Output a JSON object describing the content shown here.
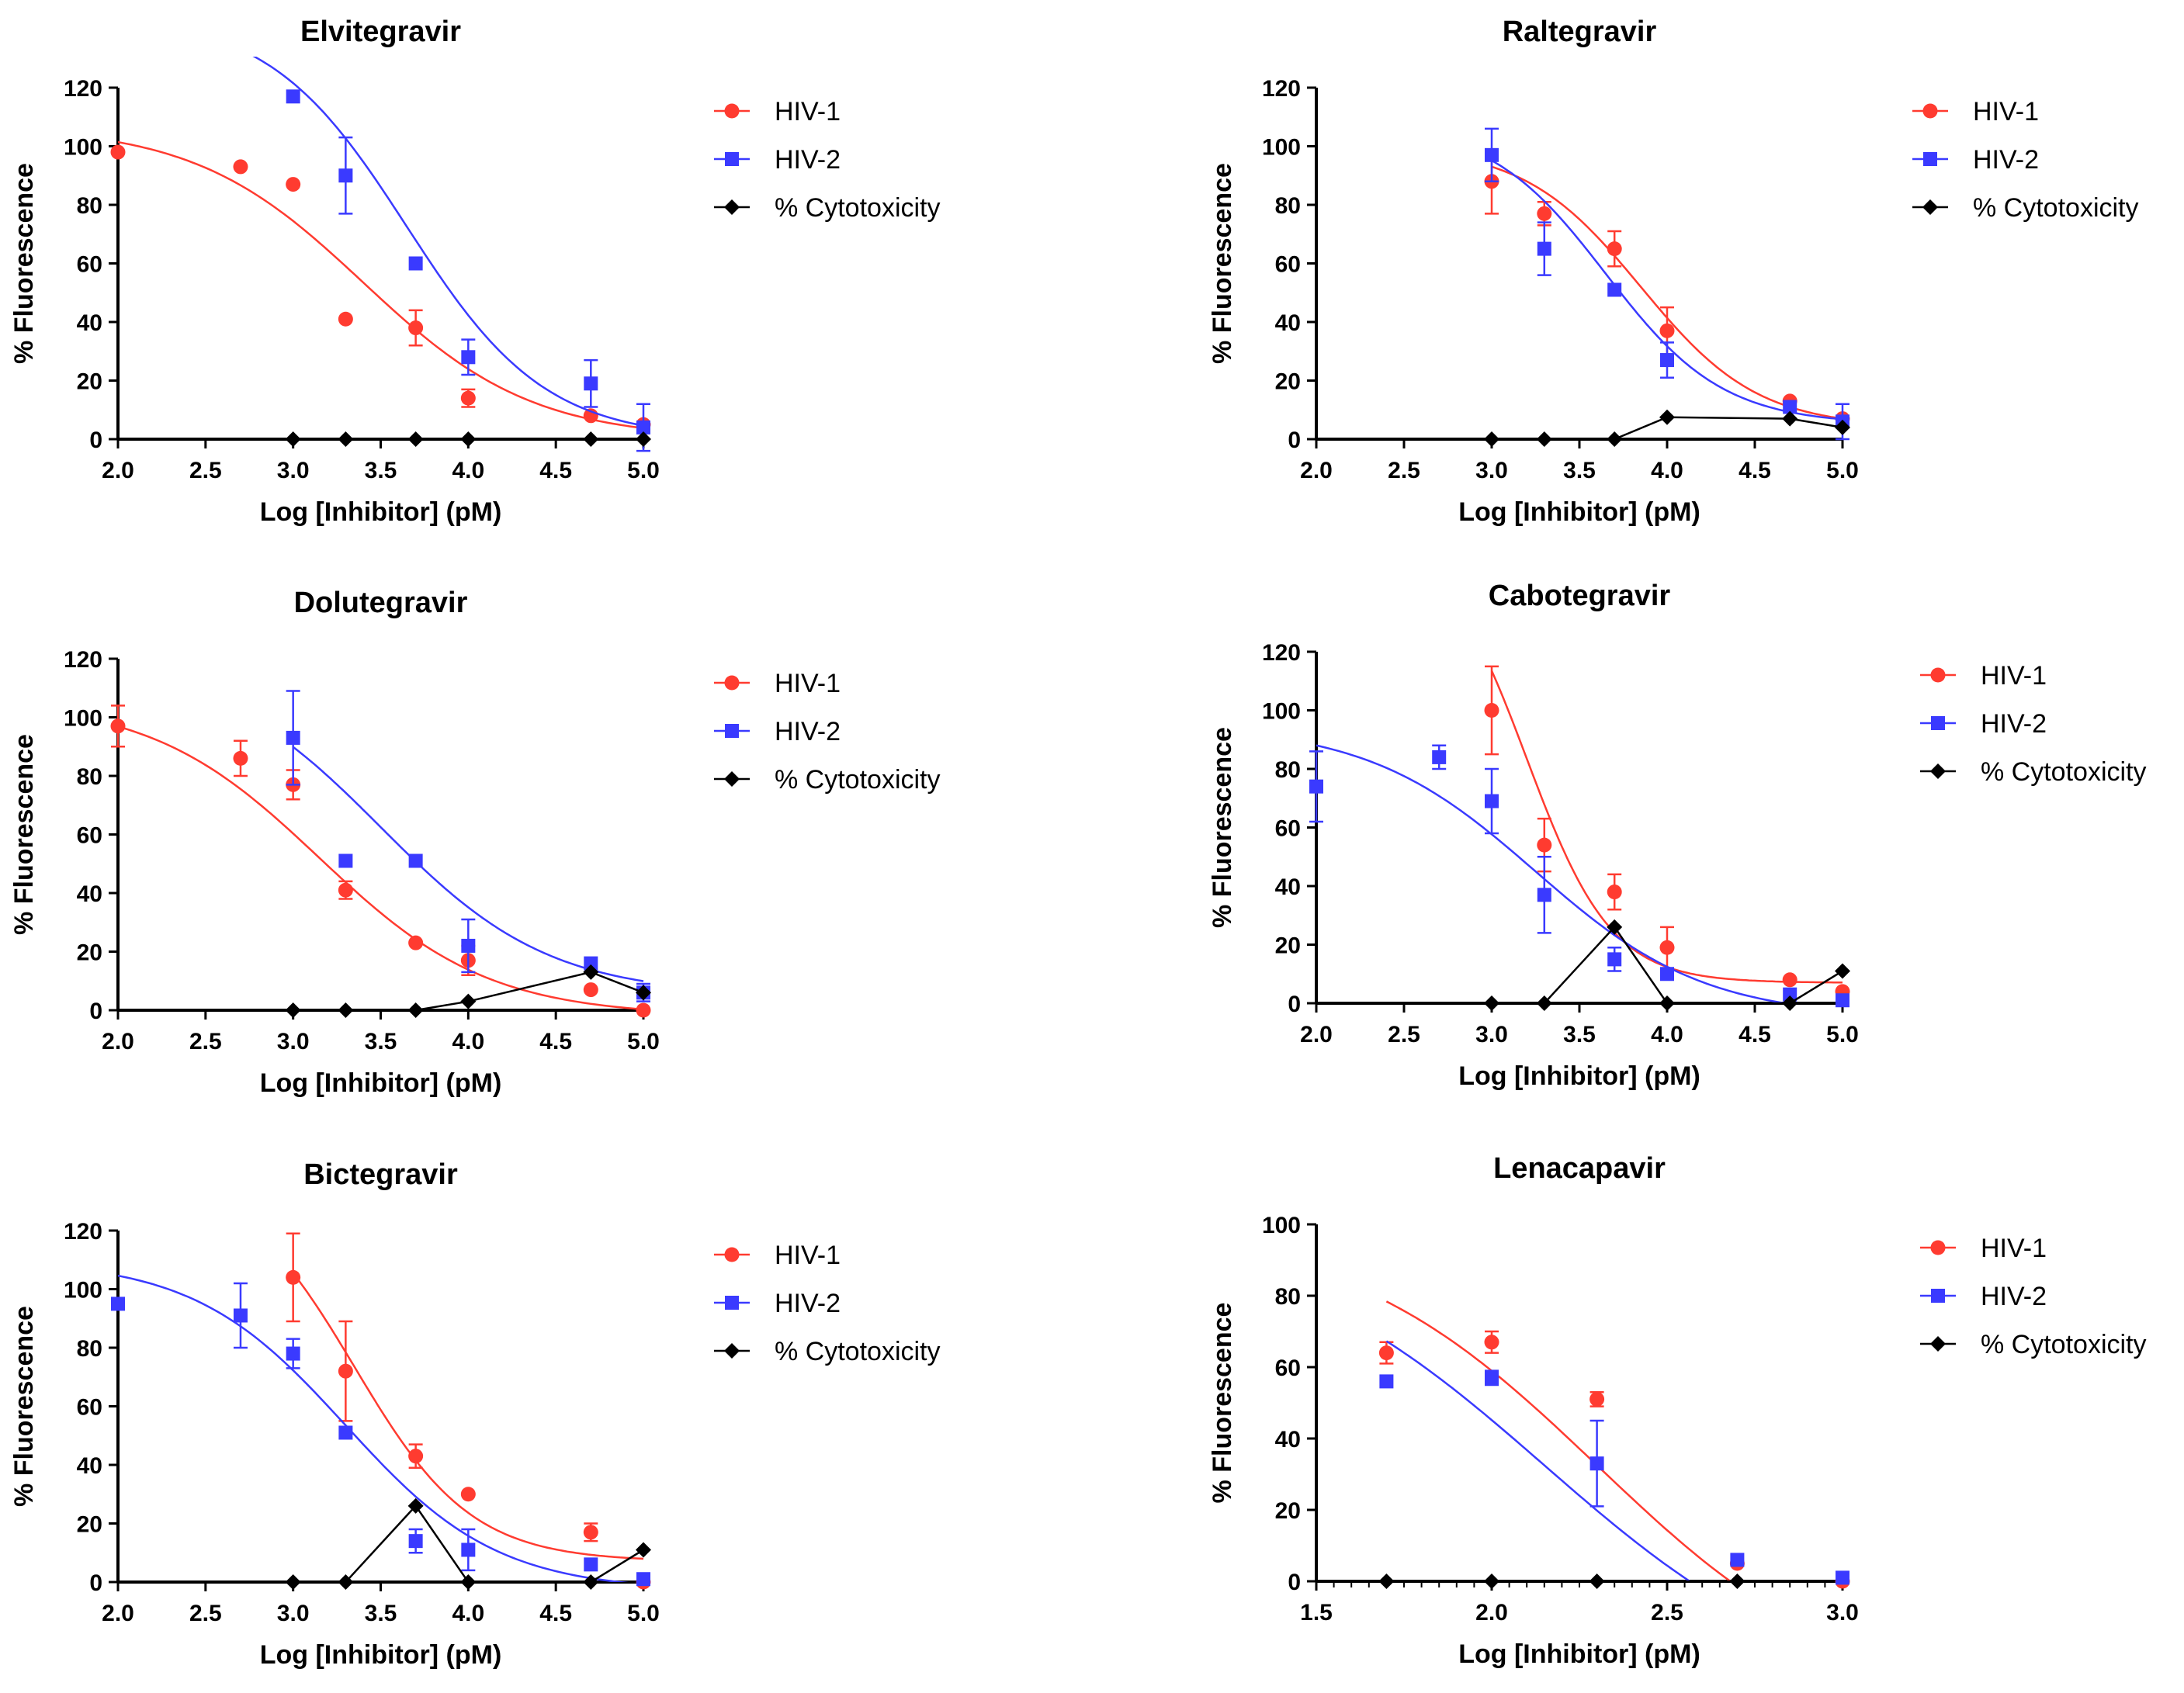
{
  "chart_data": [
    {
      "type": "scatter",
      "title": "Elvitegravir",
      "xlabel": "Log [Inhibitor] (pM)",
      "ylabel": "% Fluorescence",
      "xlim": [
        2.0,
        5.0
      ],
      "ylim": [
        0,
        120
      ],
      "xticks": [
        "2.0",
        "2.5",
        "3.0",
        "3.5",
        "4.0",
        "4.5",
        "5.0"
      ],
      "yticks": [
        "0",
        "20",
        "40",
        "60",
        "80",
        "100",
        "120"
      ],
      "minor_ticks": false,
      "legend": [
        "HIV-1",
        "HIV-2",
        "% Cytotoxicity"
      ],
      "series": [
        {
          "name": "HIV-1",
          "color": "#ff3b30",
          "marker": "circle",
          "x": [
            2.0,
            2.7,
            3.0,
            3.3,
            3.7,
            4.0,
            4.7,
            5.0
          ],
          "y": [
            98,
            93,
            87,
            41,
            38,
            14,
            8,
            5
          ],
          "err": [
            0,
            0,
            0,
            0,
            6,
            3,
            0,
            0
          ],
          "fit": {
            "top": 107,
            "bottom": 0,
            "ic50": 3.4,
            "hill": -0.9
          }
        },
        {
          "name": "HIV-2",
          "color": "#3a3aff",
          "marker": "square",
          "x": [
            3.0,
            3.3,
            3.7,
            4.0,
            4.7,
            5.0
          ],
          "y": [
            117,
            90,
            60,
            28,
            19,
            4
          ],
          "err": [
            0,
            13,
            0,
            6,
            8,
            8
          ],
          "fit": {
            "top": 145,
            "bottom": 0,
            "ic50": 3.65,
            "hill": -1.1
          }
        },
        {
          "name": "% Cytotoxicity",
          "color": "#000000",
          "marker": "diamond",
          "x": [
            3.0,
            3.3,
            3.7,
            4.0,
            4.7,
            5.0
          ],
          "y": [
            0,
            0,
            0,
            0,
            0,
            0
          ]
        }
      ]
    },
    {
      "type": "scatter",
      "title": "Raltegravir",
      "xlabel": "Log [Inhibitor] (pM)",
      "ylabel": "% Fluorescence",
      "xlim": [
        2.0,
        5.0
      ],
      "ylim": [
        0,
        120
      ],
      "xticks": [
        "2.0",
        "2.5",
        "3.0",
        "3.5",
        "4.0",
        "4.5",
        "5.0"
      ],
      "yticks": [
        "0",
        "20",
        "40",
        "60",
        "80",
        "100",
        "120"
      ],
      "minor_ticks": false,
      "legend": [
        "HIV-1",
        "HIV-2",
        "% Cytotoxicity"
      ],
      "series": [
        {
          "name": "HIV-1",
          "color": "#ff3b30",
          "marker": "circle",
          "x": [
            3.0,
            3.3,
            3.7,
            4.0,
            4.7,
            5.0
          ],
          "y": [
            88,
            77,
            65,
            37,
            13,
            7
          ],
          "err": [
            11,
            4,
            6,
            8,
            0,
            0
          ],
          "fit": {
            "top": 100,
            "bottom": 4,
            "ic50": 3.85,
            "hill": -1.3
          },
          "fit_x": [
            3.0,
            5.0
          ]
        },
        {
          "name": "HIV-2",
          "color": "#3a3aff",
          "marker": "square",
          "x": [
            3.0,
            3.3,
            3.7,
            4.0,
            4.7,
            5.0
          ],
          "y": [
            97,
            65,
            51,
            27,
            11,
            6
          ],
          "err": [
            9,
            9,
            0,
            6,
            0,
            6
          ],
          "fit": {
            "top": 108,
            "bottom": 5,
            "ic50": 3.65,
            "hill": -1.3
          },
          "fit_x": [
            3.0,
            5.0
          ]
        },
        {
          "name": "% Cytotoxicity",
          "color": "#000000",
          "marker": "diamond",
          "x": [
            3.0,
            3.3,
            3.7,
            4.0,
            4.7,
            5.0
          ],
          "y": [
            0,
            0,
            0,
            7.5,
            7,
            4
          ]
        }
      ]
    },
    {
      "type": "scatter",
      "title": "Dolutegravir",
      "xlabel": "Log [Inhibitor] (pM)",
      "ylabel": "% Fluorescence",
      "xlim": [
        2.0,
        5.0
      ],
      "ylim": [
        0,
        120
      ],
      "xticks": [
        "2.0",
        "2.5",
        "3.0",
        "3.5",
        "4.0",
        "4.5",
        "5.0"
      ],
      "yticks": [
        "0",
        "20",
        "40",
        "60",
        "80",
        "100",
        "120"
      ],
      "minor_ticks": false,
      "legend": [
        "HIV-1",
        "HIV-2",
        "% Cytotoxicity"
      ],
      "series": [
        {
          "name": "HIV-1",
          "color": "#ff3b30",
          "marker": "circle",
          "x": [
            2.0,
            2.7,
            3.0,
            3.3,
            3.7,
            4.0,
            4.7,
            5.0
          ],
          "y": [
            97,
            86,
            77,
            41,
            23,
            17,
            7,
            0
          ],
          "err": [
            7,
            6,
            5,
            3,
            0,
            5,
            0,
            0
          ],
          "fit": {
            "top": 106,
            "bottom": -2,
            "ic50": 3.15,
            "hill": -0.9
          }
        },
        {
          "name": "HIV-2",
          "color": "#3a3aff",
          "marker": "square",
          "x": [
            3.0,
            3.3,
            3.7,
            4.0,
            4.7,
            5.0
          ],
          "y": [
            93,
            51,
            51,
            22,
            16,
            6
          ],
          "err": [
            16,
            0,
            0,
            9,
            0,
            3
          ],
          "fit": {
            "top": 120,
            "bottom": 5,
            "ic50": 3.5,
            "hill": -0.9
          },
          "fit_x": [
            3.0,
            5.0
          ]
        },
        {
          "name": "% Cytotoxicity",
          "color": "#000000",
          "marker": "diamond",
          "x": [
            3.0,
            3.3,
            3.7,
            4.0,
            4.7,
            5.0
          ],
          "y": [
            0,
            0,
            0,
            3,
            13,
            6
          ]
        }
      ]
    },
    {
      "type": "scatter",
      "title": "Cabotegravir",
      "xlabel": "Log [Inhibitor] (pM)",
      "ylabel": "% Fluorescence",
      "xlim": [
        2.0,
        5.0
      ],
      "ylim": [
        0,
        120
      ],
      "xticks": [
        "2.0",
        "2.5",
        "3.0",
        "3.5",
        "4.0",
        "4.5",
        "5.0"
      ],
      "yticks": [
        "0",
        "20",
        "40",
        "60",
        "80",
        "100",
        "120"
      ],
      "minor_ticks": false,
      "legend": [
        "HIV-1",
        "HIV-2",
        "% Cytotoxicity"
      ],
      "series": [
        {
          "name": "HIV-1",
          "color": "#ff3b30",
          "marker": "circle",
          "x": [
            3.0,
            3.3,
            3.7,
            4.0,
            4.7,
            5.0
          ],
          "y": [
            100,
            54,
            38,
            19,
            8,
            4
          ],
          "err": [
            15,
            9,
            6,
            7,
            0,
            0
          ],
          "fit": {
            "top": 160,
            "bottom": 7,
            "ic50": 3.2,
            "hill": -1.8
          },
          "fit_x": [
            3.0,
            5.0
          ]
        },
        {
          "name": "HIV-2",
          "color": "#3a3aff",
          "marker": "square",
          "x": [
            2.0,
            2.7,
            3.0,
            3.3,
            3.7,
            4.0,
            4.7,
            5.0
          ],
          "y": [
            74,
            84,
            69,
            37,
            15,
            10,
            3,
            1
          ],
          "err": [
            12,
            4,
            11,
            13,
            4,
            0,
            0,
            0
          ],
          "fit": {
            "top": 95,
            "bottom": -5,
            "ic50": 3.25,
            "hill": -0.9
          }
        },
        {
          "name": "% Cytotoxicity",
          "color": "#000000",
          "marker": "diamond",
          "x": [
            3.0,
            3.3,
            3.7,
            4.0,
            4.7,
            5.0
          ],
          "y": [
            0,
            0,
            26,
            0,
            0,
            11
          ]
        }
      ]
    },
    {
      "type": "scatter",
      "title": "Bictegravir",
      "xlabel": "Log [Inhibitor] (pM)",
      "ylabel": "% Fluorescence",
      "xlim": [
        2.0,
        5.0
      ],
      "ylim": [
        0,
        120
      ],
      "xticks": [
        "2.0",
        "2.5",
        "3.0",
        "3.5",
        "4.0",
        "4.5",
        "5.0"
      ],
      "yticks": [
        "0",
        "20",
        "40",
        "60",
        "80",
        "100",
        "120"
      ],
      "minor_ticks": false,
      "legend": [
        "HIV-1",
        "HIV-2",
        "% Cytotoxicity"
      ],
      "series": [
        {
          "name": "HIV-1",
          "color": "#ff3b30",
          "marker": "circle",
          "x": [
            3.0,
            3.3,
            3.7,
            4.0,
            4.7,
            5.0
          ],
          "y": [
            104,
            72,
            43,
            30,
            17,
            0
          ],
          "err": [
            15,
            17,
            4,
            0,
            3,
            0
          ],
          "fit": {
            "top": 140,
            "bottom": 7,
            "ic50": 3.35,
            "hill": -1.3
          },
          "fit_x": [
            3.0,
            5.0
          ]
        },
        {
          "name": "HIV-2",
          "color": "#3a3aff",
          "marker": "square",
          "x": [
            2.0,
            2.7,
            3.0,
            3.3,
            3.7,
            4.0,
            4.7,
            5.0
          ],
          "y": [
            95,
            91,
            78,
            51,
            14,
            11,
            6,
            1
          ],
          "err": [
            0,
            11,
            5,
            0,
            4,
            7,
            0,
            0
          ],
          "fit": {
            "top": 110,
            "bottom": -3,
            "ic50": 3.3,
            "hill": -1.0
          }
        },
        {
          "name": "% Cytotoxicity",
          "color": "#000000",
          "marker": "diamond",
          "x": [
            3.0,
            3.3,
            3.7,
            4.0,
            4.7,
            5.0
          ],
          "y": [
            0,
            0,
            26,
            0,
            0,
            11
          ]
        }
      ]
    },
    {
      "type": "scatter",
      "title": "Lenacapavir",
      "xlabel": "Log [Inhibitor] (pM)",
      "ylabel": "% Fluorescence",
      "xlim": [
        1.5,
        3.0
      ],
      "ylim": [
        0,
        100
      ],
      "xticks": [
        "1.5",
        "2.0",
        "2.5",
        "3.0"
      ],
      "yticks": [
        "0",
        "20",
        "40",
        "60",
        "80",
        "100"
      ],
      "minor_ticks": true,
      "legend": [
        "HIV-1",
        "HIV-2",
        "% Cytotoxicity"
      ],
      "series": [
        {
          "name": "HIV-1",
          "color": "#ff3b30",
          "marker": "circle",
          "x": [
            1.7,
            2.0,
            2.3,
            2.7,
            3.0
          ],
          "y": [
            64,
            67,
            51,
            5,
            0
          ],
          "err": [
            3,
            3,
            2,
            0,
            0
          ],
          "fit": {
            "top": 100,
            "bottom": -35,
            "ic50": 2.3,
            "hill": -1.2
          },
          "fit_x": [
            1.7,
            2.95
          ]
        },
        {
          "name": "HIV-2",
          "color": "#3a3aff",
          "marker": "square",
          "x": [
            1.7,
            2.0,
            2.3,
            2.7,
            3.0
          ],
          "y": [
            56,
            57,
            33,
            6,
            1
          ],
          "err": [
            0,
            2,
            12,
            0,
            0
          ],
          "fit": {
            "top": 100,
            "bottom": -35,
            "ic50": 2.15,
            "hill": -1.1
          },
          "fit_x": [
            1.7,
            2.95
          ]
        },
        {
          "name": "% Cytotoxicity",
          "color": "#000000",
          "marker": "diamond",
          "x": [
            1.7,
            2.0,
            2.3,
            2.7
          ],
          "y": [
            0,
            0,
            0,
            0
          ]
        }
      ]
    }
  ]
}
